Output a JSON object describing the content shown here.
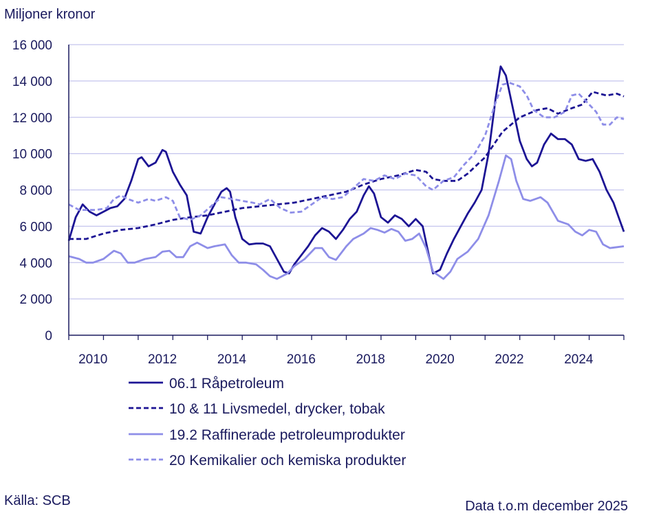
{
  "chart_data": {
    "type": "line",
    "ylabel": "Miljoner kronor",
    "ylim": [
      0,
      16000
    ],
    "yticks": [
      0,
      2000,
      4000,
      6000,
      8000,
      10000,
      12000,
      14000,
      16000
    ],
    "ytick_labels": [
      "0",
      "2 000",
      "4 000",
      "6 000",
      "8 000",
      "10 000",
      "12 000",
      "14 000",
      "16 000"
    ],
    "xlim": [
      2009.5,
      2025.5
    ],
    "xticks": [
      2010,
      2012,
      2014,
      2016,
      2018,
      2020,
      2022,
      2024
    ],
    "xtick_labels": [
      "2010",
      "2012",
      "2014",
      "2016",
      "2018",
      "2020",
      "2022",
      "2024"
    ],
    "grid": "horizontal",
    "legend_position": "bottom",
    "series": [
      {
        "name": "06.1 Råpetroleum",
        "color": "#1c1494",
        "dash": "solid",
        "points": [
          [
            2009.5,
            5200
          ],
          [
            2009.7,
            6500
          ],
          [
            2009.9,
            7200
          ],
          [
            2010.1,
            6800
          ],
          [
            2010.3,
            6600
          ],
          [
            2010.5,
            6800
          ],
          [
            2010.7,
            7000
          ],
          [
            2010.9,
            7100
          ],
          [
            2011.1,
            7500
          ],
          [
            2011.3,
            8500
          ],
          [
            2011.5,
            9700
          ],
          [
            2011.6,
            9800
          ],
          [
            2011.8,
            9300
          ],
          [
            2012.0,
            9500
          ],
          [
            2012.2,
            10200
          ],
          [
            2012.3,
            10100
          ],
          [
            2012.5,
            9000
          ],
          [
            2012.7,
            8300
          ],
          [
            2012.9,
            7700
          ],
          [
            2013.1,
            5700
          ],
          [
            2013.3,
            5600
          ],
          [
            2013.5,
            6500
          ],
          [
            2013.7,
            7200
          ],
          [
            2013.9,
            7900
          ],
          [
            2014.05,
            8100
          ],
          [
            2014.15,
            7900
          ],
          [
            2014.3,
            6500
          ],
          [
            2014.5,
            5300
          ],
          [
            2014.7,
            5000
          ],
          [
            2014.9,
            5050
          ],
          [
            2015.1,
            5050
          ],
          [
            2015.3,
            4900
          ],
          [
            2015.5,
            4200
          ],
          [
            2015.7,
            3500
          ],
          [
            2015.85,
            3400
          ],
          [
            2016.0,
            3900
          ],
          [
            2016.2,
            4400
          ],
          [
            2016.4,
            4900
          ],
          [
            2016.6,
            5500
          ],
          [
            2016.8,
            5900
          ],
          [
            2017.0,
            5700
          ],
          [
            2017.2,
            5300
          ],
          [
            2017.4,
            5800
          ],
          [
            2017.6,
            6400
          ],
          [
            2017.8,
            6800
          ],
          [
            2018.0,
            7700
          ],
          [
            2018.15,
            8200
          ],
          [
            2018.3,
            7800
          ],
          [
            2018.5,
            6500
          ],
          [
            2018.7,
            6200
          ],
          [
            2018.9,
            6600
          ],
          [
            2019.1,
            6400
          ],
          [
            2019.3,
            6000
          ],
          [
            2019.5,
            6400
          ],
          [
            2019.7,
            6000
          ],
          [
            2019.9,
            4200
          ],
          [
            2020.0,
            3400
          ],
          [
            2020.2,
            3600
          ],
          [
            2020.4,
            4500
          ],
          [
            2020.6,
            5300
          ],
          [
            2020.8,
            6000
          ],
          [
            2021.0,
            6700
          ],
          [
            2021.2,
            7300
          ],
          [
            2021.4,
            8000
          ],
          [
            2021.6,
            10000
          ],
          [
            2021.8,
            13000
          ],
          [
            2021.95,
            14800
          ],
          [
            2022.1,
            14300
          ],
          [
            2022.3,
            12500
          ],
          [
            2022.5,
            10700
          ],
          [
            2022.7,
            9700
          ],
          [
            2022.85,
            9300
          ],
          [
            2023.0,
            9500
          ],
          [
            2023.2,
            10500
          ],
          [
            2023.4,
            11100
          ],
          [
            2023.6,
            10800
          ],
          [
            2023.8,
            10800
          ],
          [
            2024.0,
            10500
          ],
          [
            2024.2,
            9700
          ],
          [
            2024.4,
            9600
          ],
          [
            2024.6,
            9700
          ],
          [
            2024.8,
            9000
          ],
          [
            2025.0,
            8000
          ],
          [
            2025.2,
            7300
          ],
          [
            2025.35,
            6500
          ],
          [
            2025.5,
            5700
          ]
        ]
      },
      {
        "name": "10 & 11 Livsmedel, drycker, tobak",
        "color": "#1c1494",
        "dash": "dashed",
        "points": [
          [
            2009.5,
            5300
          ],
          [
            2010.0,
            5300
          ],
          [
            2010.5,
            5600
          ],
          [
            2011.0,
            5800
          ],
          [
            2011.5,
            5900
          ],
          [
            2012.0,
            6100
          ],
          [
            2012.5,
            6350
          ],
          [
            2013.0,
            6500
          ],
          [
            2013.5,
            6600
          ],
          [
            2014.0,
            6800
          ],
          [
            2014.5,
            7000
          ],
          [
            2015.0,
            7100
          ],
          [
            2015.5,
            7200
          ],
          [
            2016.0,
            7300
          ],
          [
            2016.5,
            7500
          ],
          [
            2017.0,
            7700
          ],
          [
            2017.5,
            7900
          ],
          [
            2018.0,
            8300
          ],
          [
            2018.5,
            8600
          ],
          [
            2019.0,
            8800
          ],
          [
            2019.5,
            9100
          ],
          [
            2019.8,
            9000
          ],
          [
            2020.0,
            8600
          ],
          [
            2020.3,
            8500
          ],
          [
            2020.7,
            8500
          ],
          [
            2021.0,
            8900
          ],
          [
            2021.5,
            9800
          ],
          [
            2022.0,
            11200
          ],
          [
            2022.5,
            12000
          ],
          [
            2023.0,
            12400
          ],
          [
            2023.3,
            12500
          ],
          [
            2023.6,
            12200
          ],
          [
            2024.0,
            12500
          ],
          [
            2024.3,
            12700
          ],
          [
            2024.6,
            13400
          ],
          [
            2025.0,
            13200
          ],
          [
            2025.3,
            13300
          ],
          [
            2025.5,
            13150
          ]
        ]
      },
      {
        "name": "19.2 Raffinerade petroleumprodukter",
        "color": "#8e8ee8",
        "dash": "solid",
        "points": [
          [
            2009.5,
            4350
          ],
          [
            2009.8,
            4200
          ],
          [
            2010.0,
            4000
          ],
          [
            2010.2,
            4000
          ],
          [
            2010.5,
            4200
          ],
          [
            2010.8,
            4650
          ],
          [
            2011.0,
            4500
          ],
          [
            2011.2,
            4000
          ],
          [
            2011.4,
            4000
          ],
          [
            2011.7,
            4200
          ],
          [
            2012.0,
            4300
          ],
          [
            2012.2,
            4600
          ],
          [
            2012.4,
            4650
          ],
          [
            2012.6,
            4300
          ],
          [
            2012.8,
            4300
          ],
          [
            2013.0,
            4900
          ],
          [
            2013.2,
            5100
          ],
          [
            2013.5,
            4800
          ],
          [
            2013.7,
            4900
          ],
          [
            2014.0,
            5000
          ],
          [
            2014.2,
            4400
          ],
          [
            2014.4,
            4000
          ],
          [
            2014.6,
            4000
          ],
          [
            2014.9,
            3900
          ],
          [
            2015.1,
            3600
          ],
          [
            2015.3,
            3250
          ],
          [
            2015.5,
            3100
          ],
          [
            2015.8,
            3400
          ],
          [
            2016.0,
            3800
          ],
          [
            2016.3,
            4200
          ],
          [
            2016.6,
            4800
          ],
          [
            2016.8,
            4800
          ],
          [
            2017.0,
            4300
          ],
          [
            2017.2,
            4150
          ],
          [
            2017.5,
            4900
          ],
          [
            2017.7,
            5300
          ],
          [
            2018.0,
            5600
          ],
          [
            2018.2,
            5900
          ],
          [
            2018.4,
            5800
          ],
          [
            2018.6,
            5650
          ],
          [
            2018.8,
            5850
          ],
          [
            2019.0,
            5700
          ],
          [
            2019.2,
            5200
          ],
          [
            2019.4,
            5300
          ],
          [
            2019.6,
            5600
          ],
          [
            2019.8,
            4800
          ],
          [
            2020.0,
            3500
          ],
          [
            2020.3,
            3100
          ],
          [
            2020.5,
            3500
          ],
          [
            2020.7,
            4200
          ],
          [
            2021.0,
            4600
          ],
          [
            2021.3,
            5300
          ],
          [
            2021.6,
            6600
          ],
          [
            2021.9,
            8500
          ],
          [
            2022.1,
            9900
          ],
          [
            2022.25,
            9700
          ],
          [
            2022.4,
            8500
          ],
          [
            2022.6,
            7500
          ],
          [
            2022.8,
            7400
          ],
          [
            2023.1,
            7600
          ],
          [
            2023.3,
            7300
          ],
          [
            2023.6,
            6300
          ],
          [
            2023.9,
            6100
          ],
          [
            2024.1,
            5700
          ],
          [
            2024.3,
            5500
          ],
          [
            2024.5,
            5800
          ],
          [
            2024.7,
            5700
          ],
          [
            2024.9,
            5000
          ],
          [
            2025.1,
            4800
          ],
          [
            2025.3,
            4850
          ],
          [
            2025.5,
            4900
          ]
        ]
      },
      {
        "name": "20 Kemikalier och kemiska produkter",
        "color": "#8e8ee8",
        "dash": "dashed",
        "points": [
          [
            2009.5,
            7200
          ],
          [
            2009.8,
            6900
          ],
          [
            2010.0,
            6900
          ],
          [
            2010.3,
            6900
          ],
          [
            2010.6,
            7000
          ],
          [
            2010.8,
            7500
          ],
          [
            2011.0,
            7700
          ],
          [
            2011.2,
            7500
          ],
          [
            2011.5,
            7300
          ],
          [
            2011.8,
            7500
          ],
          [
            2012.0,
            7400
          ],
          [
            2012.3,
            7600
          ],
          [
            2012.5,
            7400
          ],
          [
            2012.7,
            6500
          ],
          [
            2013.0,
            6350
          ],
          [
            2013.3,
            6600
          ],
          [
            2013.6,
            7100
          ],
          [
            2013.9,
            7600
          ],
          [
            2014.2,
            7500
          ],
          [
            2014.5,
            7400
          ],
          [
            2014.8,
            7300
          ],
          [
            2015.0,
            7200
          ],
          [
            2015.3,
            7500
          ],
          [
            2015.6,
            7000
          ],
          [
            2015.9,
            6750
          ],
          [
            2016.2,
            6800
          ],
          [
            2016.5,
            7200
          ],
          [
            2016.8,
            7600
          ],
          [
            2017.1,
            7500
          ],
          [
            2017.4,
            7600
          ],
          [
            2017.7,
            8100
          ],
          [
            2018.0,
            8600
          ],
          [
            2018.3,
            8500
          ],
          [
            2018.6,
            8800
          ],
          [
            2018.9,
            8600
          ],
          [
            2019.2,
            8900
          ],
          [
            2019.5,
            8800
          ],
          [
            2019.8,
            8200
          ],
          [
            2020.0,
            8000
          ],
          [
            2020.3,
            8500
          ],
          [
            2020.6,
            8700
          ],
          [
            2020.9,
            9400
          ],
          [
            2021.2,
            10000
          ],
          [
            2021.5,
            11000
          ],
          [
            2021.8,
            12800
          ],
          [
            2022.0,
            13800
          ],
          [
            2022.2,
            13900
          ],
          [
            2022.5,
            13700
          ],
          [
            2022.7,
            13200
          ],
          [
            2022.9,
            12400
          ],
          [
            2023.2,
            12000
          ],
          [
            2023.5,
            12000
          ],
          [
            2023.8,
            12300
          ],
          [
            2024.0,
            13200
          ],
          [
            2024.2,
            13300
          ],
          [
            2024.5,
            12700
          ],
          [
            2024.7,
            12300
          ],
          [
            2024.9,
            11600
          ],
          [
            2025.1,
            11600
          ],
          [
            2025.3,
            12000
          ],
          [
            2025.5,
            11900
          ]
        ]
      }
    ]
  },
  "source_note": "Källa: SCB",
  "data_note": "Data t.o.m december 2025"
}
